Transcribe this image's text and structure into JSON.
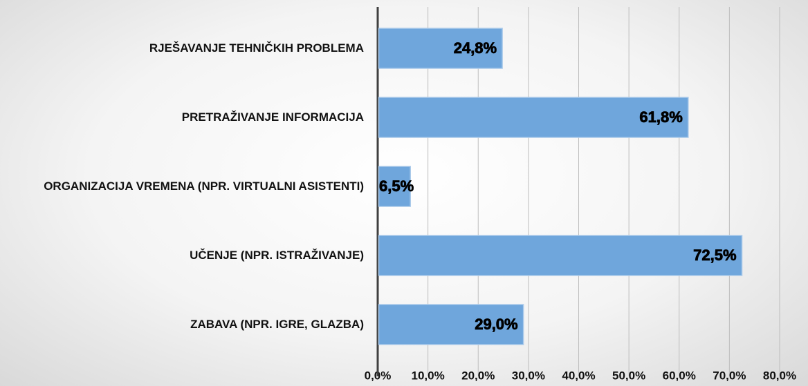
{
  "chart_data": {
    "type": "bar",
    "orientation": "horizontal",
    "categories": [
      "RJEŠAVANJE TEHNIČKIH PROBLEMA",
      "PRETRAŽIVANJE INFORMACIJA",
      "ORGANIZACIJA VREMENA (NPR. VIRTUALNI ASISTENTI)",
      "UČENJE (NPR. ISTRAŽIVANJE)",
      "ZABAVA (NPR. IGRE, GLAZBA)"
    ],
    "values": [
      24.8,
      61.8,
      6.5,
      72.5,
      29.0
    ],
    "value_labels": [
      "24,8%",
      "61,8%",
      "6,5%",
      "72,5%",
      "29,0%"
    ],
    "color": "#6fa6dc",
    "xlim": [
      0,
      80
    ],
    "xticks": [
      {
        "value": 0,
        "label": "0,0%"
      },
      {
        "value": 10,
        "label": "10,0%"
      },
      {
        "value": 20,
        "label": "20,0%"
      },
      {
        "value": 30,
        "label": "30,0%"
      },
      {
        "value": 40,
        "label": "40,0%"
      },
      {
        "value": 50,
        "label": "50,0%"
      },
      {
        "value": 60,
        "label": "60,0%"
      },
      {
        "value": 70,
        "label": "70,0%"
      },
      {
        "value": 80,
        "label": "80,0%"
      }
    ],
    "grid": true
  }
}
